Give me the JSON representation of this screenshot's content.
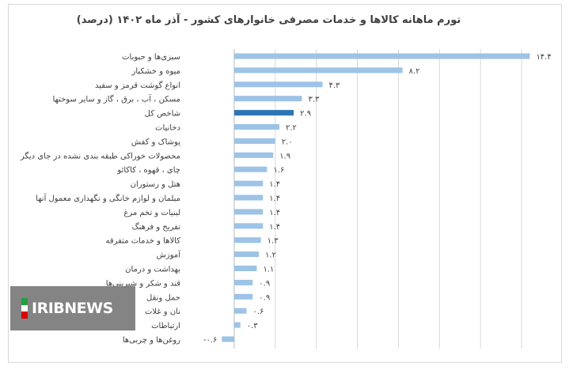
{
  "chart_data": {
    "type": "bar",
    "orientation": "horizontal",
    "title": "تورم ماهانه کالاها و خدمات مصرفی خانوارهای کشور - آذر ماه ۱۴۰۲ (درصد)",
    "categories": [
      "سبزی‌ها و حبوبات",
      "میوه و خشکبار",
      "انواع گوشت قرمز و سفید",
      "مسکن ، آب ، برق ، گاز و سایر سوختها",
      "شاخص کل",
      "دخانیات",
      "پوشاک و کفش",
      "محصولات خوراکی طبقه بندی نشده در جای دیگر",
      "چای ، قهوه ، کاکائو",
      "هتل و رستوران",
      "مبلمان و لوازم خانگی و نگهداری معمول آنها",
      "لبنیات و تخم مرغ",
      "تفریح و فرهنگ",
      "کالاها و خدمات متفرقه",
      "آموزش",
      "بهداشت و درمان",
      "قند و شکر و شیرینی‌ها",
      "حمل ونقل",
      "نان و غلات",
      "ارتباطات",
      "روغن‌ها و چربی‌ها"
    ],
    "values": [
      14.4,
      8.2,
      4.3,
      3.3,
      2.9,
      2.2,
      2.0,
      1.9,
      1.6,
      1.4,
      1.4,
      1.4,
      1.4,
      1.3,
      1.2,
      1.1,
      0.9,
      0.9,
      0.6,
      0.3,
      -0.6
    ],
    "value_labels": [
      "۱۴.۴",
      "۸.۲",
      "۴.۳",
      "۳.۳",
      "۲.۹",
      "۲.۲",
      "۲.۰",
      "۱.۹",
      "۱.۶",
      "۱.۴",
      "۱.۴",
      "۱.۴",
      "۱.۴",
      "۱.۳",
      "۱.۲",
      "۱.۱",
      "۰.۹",
      "۰.۹",
      "۰.۶",
      "۰.۳",
      "-۰.۶"
    ],
    "highlight_index": 4,
    "bar_color": "#9dc3e6",
    "highlight_color": "#2e75b6",
    "xlim": [
      -1,
      15
    ],
    "grid": "vertical",
    "grid_color": "#d9d9d9"
  },
  "watermark": {
    "text": "IRIBNEWS",
    "flag_colors": [
      "#239f40",
      "#ffffff",
      "#da0000"
    ]
  }
}
